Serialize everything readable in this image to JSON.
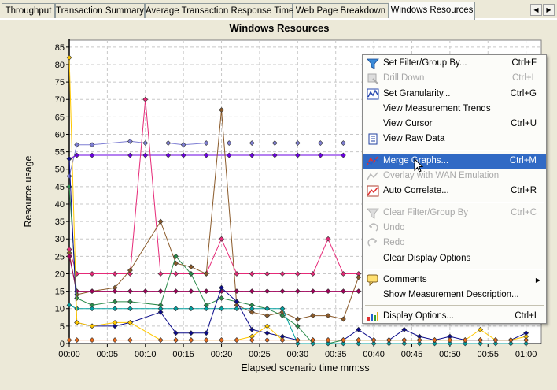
{
  "tabs": [
    {
      "label": "Throughput",
      "active": false
    },
    {
      "label": "Transaction Summary",
      "active": false
    },
    {
      "label": "Average Transaction Response Time",
      "active": false
    },
    {
      "label": "Web Page Breakdown",
      "active": false
    },
    {
      "label": "Windows Resources",
      "active": true
    }
  ],
  "tab_nav": {
    "prev": "◀",
    "next": "▶"
  },
  "chart_data": {
    "type": "line",
    "title": "Windows Resources",
    "xlabel": "Elapsed scenario time mm:ss",
    "ylabel": "Resource usage",
    "x_tick_labels": [
      "00:00",
      "00:05",
      "00:10",
      "00:15",
      "00:20",
      "00:25",
      "00:30",
      "00:35",
      "00:40",
      "00:45",
      "00:50",
      "00:55",
      "01:00"
    ],
    "xlim_seconds": [
      0,
      62
    ],
    "y_ticks": [
      0,
      5,
      10,
      15,
      20,
      25,
      30,
      35,
      40,
      45,
      50,
      55,
      60,
      65,
      70,
      75,
      80,
      85
    ],
    "ylim": [
      0,
      87
    ],
    "grid": true,
    "colors": {
      "background": "#ffffff",
      "grid": "#c8c8c8"
    },
    "series": [
      {
        "color": "#7f7fd4",
        "x": [
          0,
          1,
          3,
          8,
          10,
          13,
          15,
          18,
          21,
          24,
          27,
          30,
          33,
          36
        ],
        "y": [
          48,
          57,
          57,
          58,
          57.5,
          57.5,
          57,
          57.5,
          57.5,
          57.5,
          57.5,
          57.5,
          57.5,
          57.5
        ]
      },
      {
        "color": "#6a00e0",
        "x": [
          0,
          1,
          3,
          8,
          10,
          13,
          15,
          18,
          21,
          24,
          27,
          30,
          33,
          36
        ],
        "y": [
          53,
          54,
          54,
          54,
          54,
          54,
          54,
          54,
          54,
          54,
          54,
          54,
          54,
          54
        ]
      },
      {
        "color": "#e62a78",
        "x": [
          0,
          1,
          3,
          6,
          8,
          10,
          12,
          14,
          16,
          18,
          20,
          22,
          24,
          26,
          28,
          30,
          32,
          34,
          36,
          38
        ],
        "y": [
          27,
          20,
          20,
          20,
          20,
          70,
          20,
          20,
          20,
          20,
          30,
          20,
          20,
          20,
          20,
          20,
          20,
          30,
          20,
          20
        ]
      },
      {
        "color": "#8a5a2a",
        "x": [
          0,
          1,
          3,
          6,
          8,
          12,
          14,
          16,
          18,
          20,
          22,
          24,
          26,
          28,
          30,
          32,
          34,
          36,
          38
        ],
        "y": [
          26,
          14,
          15,
          16,
          21,
          35,
          23,
          22,
          20,
          67,
          11,
          9,
          8,
          9,
          7,
          8,
          8,
          7,
          19
        ]
      },
      {
        "color": "#a0005a",
        "x": [
          0,
          1,
          3,
          6,
          8,
          10,
          12,
          14,
          16,
          18,
          20,
          22,
          24,
          26,
          28,
          30,
          32,
          34,
          36,
          38
        ],
        "y": [
          25,
          15,
          15,
          15,
          15,
          15,
          15,
          15,
          15,
          15,
          15,
          15,
          15,
          15,
          15,
          15,
          15,
          15,
          15,
          15
        ]
      },
      {
        "color": "#2a8a4a",
        "x": [
          0,
          1,
          3,
          6,
          8,
          12,
          14,
          16,
          18,
          20,
          22,
          24,
          26,
          28,
          30,
          32,
          34,
          36,
          38,
          40,
          42,
          44,
          46,
          48,
          50,
          52,
          54,
          56,
          58,
          60
        ],
        "y": [
          45,
          13,
          11,
          12,
          12,
          11,
          25,
          20,
          11,
          13,
          12,
          11,
          10,
          8,
          5,
          0,
          0,
          1,
          1,
          1,
          1,
          1,
          1,
          1,
          1,
          1,
          1,
          1,
          1,
          1
        ]
      },
      {
        "color": "#00a0a0",
        "x": [
          0,
          1,
          3,
          6,
          8,
          12,
          14,
          16,
          18,
          20,
          22,
          24,
          26,
          28,
          30,
          32,
          34,
          36,
          38,
          40,
          42,
          44,
          46,
          48,
          50,
          52,
          54,
          56,
          58,
          60
        ],
        "y": [
          11,
          10,
          10,
          10,
          10,
          10,
          10,
          10,
          10,
          10,
          10,
          10,
          10,
          10,
          0,
          0,
          0,
          0,
          0,
          0,
          0,
          0,
          0,
          0,
          0,
          0,
          0,
          0,
          0,
          0
        ]
      },
      {
        "color": "#0a0a8a",
        "x": [
          0,
          1,
          3,
          6,
          8,
          12,
          14,
          16,
          18,
          20,
          22,
          24,
          26,
          28,
          30,
          32,
          34,
          36,
          38,
          40,
          42,
          44,
          46,
          48,
          50,
          52,
          54,
          56,
          58,
          60
        ],
        "y": [
          53,
          6,
          5,
          5,
          6,
          9,
          3,
          3,
          3,
          16,
          12,
          4,
          3,
          2,
          1,
          1,
          1,
          1,
          4,
          1,
          1,
          4,
          2,
          1,
          2,
          1,
          1,
          1,
          1,
          3
        ]
      },
      {
        "color": "#ffc800",
        "x": [
          0,
          1,
          3,
          6,
          8,
          12,
          14,
          16,
          18,
          20,
          22,
          24,
          26,
          28,
          30,
          32,
          34,
          36,
          38,
          40,
          42,
          44,
          46,
          48,
          50,
          52,
          54,
          56,
          58,
          60
        ],
        "y": [
          82,
          6,
          5,
          6,
          6,
          1,
          1,
          1,
          1,
          1,
          1,
          2,
          5,
          1,
          1,
          1,
          1,
          1,
          1,
          1,
          1,
          1,
          1,
          1,
          1,
          1,
          4,
          1,
          1,
          2
        ]
      },
      {
        "color": "#e86a1a",
        "x": [
          0,
          1,
          3,
          6,
          8,
          12,
          14,
          16,
          18,
          20,
          22,
          24,
          26,
          28,
          30,
          32,
          34,
          36,
          38,
          40,
          42,
          44,
          46,
          48,
          50,
          52,
          54,
          56,
          58,
          60
        ],
        "y": [
          1,
          1,
          1,
          1,
          1,
          1,
          1,
          1,
          1,
          1,
          1,
          1,
          1,
          1,
          1,
          1,
          1,
          1,
          1,
          1,
          1,
          1,
          1,
          1,
          1,
          1,
          1,
          1,
          1,
          1
        ]
      }
    ]
  },
  "context_menu": {
    "items": [
      {
        "label": "Set Filter/Group By...",
        "shortcut": "Ctrl+F",
        "icon": "filter-icon",
        "disabled": false
      },
      {
        "label": "Drill Down",
        "shortcut": "Ctrl+L",
        "icon": "drill-down-icon",
        "disabled": true
      },
      {
        "label": "Set Granularity...",
        "shortcut": "Ctrl+G",
        "icon": "granularity-icon",
        "disabled": false
      },
      {
        "label": "View Measurement Trends",
        "shortcut": "",
        "icon": "",
        "disabled": false
      },
      {
        "label": "View Cursor",
        "shortcut": "Ctrl+U",
        "icon": "",
        "disabled": false
      },
      {
        "label": "View Raw Data",
        "shortcut": "",
        "icon": "raw-data-icon",
        "disabled": false
      },
      {
        "label": "Merge Graphs...",
        "shortcut": "Ctrl+M",
        "icon": "merge-graphs-icon",
        "disabled": false,
        "highlighted": true
      },
      {
        "label": "Overlay with WAN Emulation",
        "shortcut": "",
        "icon": "wan-overlay-icon",
        "disabled": true
      },
      {
        "label": "Auto Correlate...",
        "shortcut": "Ctrl+R",
        "icon": "auto-correlate-icon",
        "disabled": false
      },
      {
        "label": "Clear Filter/Group By",
        "shortcut": "Ctrl+C",
        "icon": "clear-filter-icon",
        "disabled": true
      },
      {
        "label": "Undo",
        "shortcut": "",
        "icon": "undo-icon",
        "disabled": true
      },
      {
        "label": "Redo",
        "shortcut": "",
        "icon": "redo-icon",
        "disabled": true
      },
      {
        "label": "Clear Display Options",
        "shortcut": "",
        "icon": "",
        "disabled": false
      },
      {
        "label": "Comments",
        "shortcut": "",
        "icon": "comments-icon",
        "disabled": false,
        "submenu": true
      },
      {
        "label": "Show Measurement Description...",
        "shortcut": "",
        "icon": "",
        "disabled": false
      },
      {
        "label": "Display Options...",
        "shortcut": "Ctrl+I",
        "icon": "display-options-icon",
        "disabled": false
      }
    ]
  }
}
